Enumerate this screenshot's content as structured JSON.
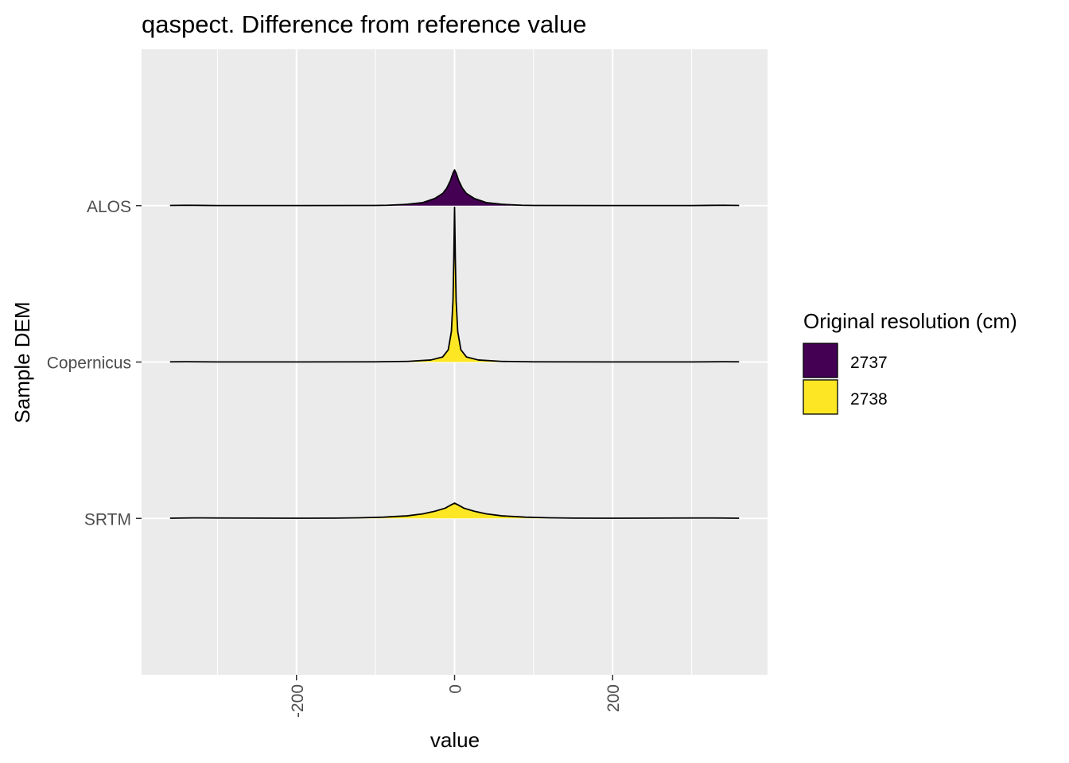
{
  "chart_data": {
    "type": "ridgeline",
    "title": "qaspect. Difference from reference value",
    "xlabel": "value",
    "ylabel": "Sample DEM",
    "xlim": [
      -396,
      396
    ],
    "x_ticks": [
      -200,
      0,
      200
    ],
    "x_tick_labels": [
      "-200",
      "0",
      "200"
    ],
    "x_minor_ticks": [
      -300,
      -100,
      100,
      300
    ],
    "grid": true,
    "categories": [
      "ALOS",
      "Copernicus",
      "SRTM"
    ],
    "legend": {
      "title": "Original resolution (cm)",
      "placement": "right",
      "entries": [
        {
          "label": "2737",
          "color": "#440154"
        },
        {
          "label": "2738",
          "color": "#FDE725"
        }
      ]
    },
    "series": [
      {
        "category": "ALOS",
        "fill_group": "2737",
        "x": [
          -360,
          -340,
          -300,
          -200,
          -100,
          -85,
          -60,
          -40,
          -25,
          -15,
          -10,
          -5,
          -2,
          0,
          2,
          5,
          10,
          15,
          25,
          40,
          60,
          85,
          100,
          200,
          300,
          340,
          360
        ],
        "density": [
          0.002,
          0.004,
          0.001,
          0.001,
          0.002,
          0.004,
          0.013,
          0.03,
          0.07,
          0.12,
          0.17,
          0.25,
          0.32,
          0.35,
          0.32,
          0.25,
          0.17,
          0.12,
          0.07,
          0.03,
          0.013,
          0.004,
          0.002,
          0.001,
          0.001,
          0.004,
          0.002
        ]
      },
      {
        "category": "Copernicus",
        "fill_group": "2738",
        "x": [
          -360,
          -340,
          -300,
          -200,
          -100,
          -60,
          -30,
          -15,
          -8,
          -4,
          -2,
          -1,
          0,
          1,
          2,
          4,
          8,
          15,
          30,
          60,
          100,
          200,
          300,
          340,
          360
        ],
        "density": [
          0.002,
          0.003,
          0.001,
          0.001,
          0.002,
          0.006,
          0.02,
          0.05,
          0.12,
          0.3,
          0.6,
          1.0,
          1.52,
          1.0,
          0.6,
          0.3,
          0.12,
          0.05,
          0.02,
          0.006,
          0.002,
          0.001,
          0.001,
          0.003,
          0.002
        ]
      },
      {
        "category": "SRTM",
        "fill_group": "2738",
        "x": [
          -360,
          -330,
          -300,
          -200,
          -150,
          -120,
          -90,
          -60,
          -40,
          -25,
          -12,
          -5,
          0,
          5,
          12,
          25,
          40,
          60,
          90,
          120,
          150,
          200,
          300,
          330,
          360
        ],
        "density": [
          0.002,
          0.005,
          0.004,
          0.002,
          0.003,
          0.006,
          0.012,
          0.025,
          0.045,
          0.07,
          0.1,
          0.13,
          0.15,
          0.13,
          0.1,
          0.07,
          0.045,
          0.025,
          0.012,
          0.006,
          0.003,
          0.002,
          0.004,
          0.004,
          0.002
        ]
      }
    ]
  }
}
